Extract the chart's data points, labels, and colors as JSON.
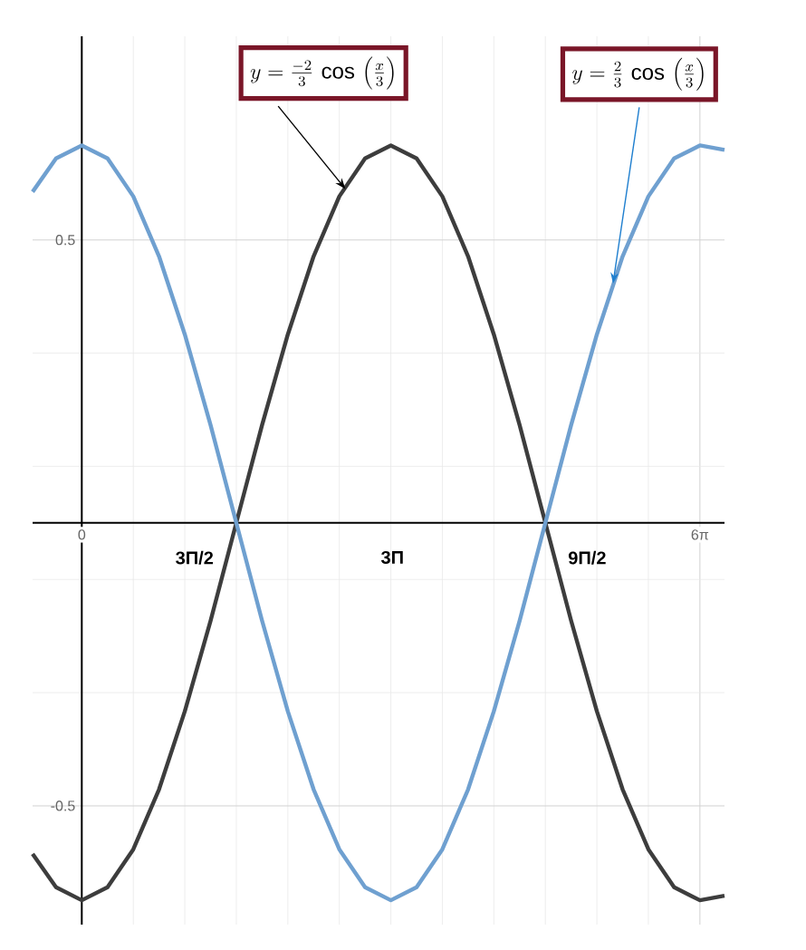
{
  "chart_data": {
    "type": "line",
    "series": [
      {
        "color": "#3d3d3d",
        "values": [
          -0.585,
          -0.644,
          -0.667,
          -0.644,
          -0.577,
          -0.471,
          -0.333,
          -0.173,
          0,
          0.173,
          0.333,
          0.471,
          0.577,
          0.644,
          0.667,
          0.644,
          0.577,
          0.471,
          0.333,
          0.173,
          0,
          -0.173,
          -0.333,
          -0.471,
          -0.577,
          -0.644,
          -0.667,
          -0.659
        ]
      },
      {
        "color": "#6fa0d0",
        "values": [
          0.585,
          0.644,
          0.667,
          0.644,
          0.577,
          0.471,
          0.333,
          0.173,
          0,
          -0.173,
          -0.333,
          -0.471,
          -0.577,
          -0.644,
          -0.667,
          -0.644,
          -0.577,
          -0.471,
          -0.333,
          -0.173,
          0,
          0.173,
          0.333,
          0.471,
          0.577,
          0.644,
          0.667,
          0.659
        ]
      }
    ],
    "x": [
      -1.5,
      -0.785,
      0,
      0.785,
      1.571,
      2.356,
      3.142,
      3.927,
      4.712,
      5.498,
      6.283,
      7.069,
      7.854,
      8.639,
      9.425,
      10.21,
      10.996,
      11.781,
      12.566,
      13.352,
      14.137,
      14.923,
      15.708,
      16.493,
      17.279,
      18.064,
      18.85,
      19.6
    ],
    "xlim": [
      -1.5,
      19.6
    ],
    "ylim": [
      -0.71,
      0.86
    ],
    "xticks": [
      {
        "value": 0,
        "label": "0"
      },
      {
        "value": 18.85,
        "label": "6π"
      }
    ],
    "yticks": [
      {
        "value": -0.5,
        "label": "-0.5"
      },
      {
        "value": 0.5,
        "label": "0.5"
      }
    ],
    "grid": true,
    "annotations": [
      {
        "text": "y = \\frac{-2}{3}\\,\\cos\\,\\left(\\frac{x}{3}\\right)",
        "x": 8.04,
        "y": 0.59
      },
      {
        "text": "y = \\frac{2}{3}\\,\\cos\\,\\left(\\frac{x}{3}\\right)",
        "x": 16.2,
        "y": 0.423
      },
      {
        "text": "3Π/2",
        "x": 4.712,
        "y": 0
      },
      {
        "text": "9Π/2",
        "x": 14.137,
        "y": 0
      },
      "3Π"
    ]
  }
}
